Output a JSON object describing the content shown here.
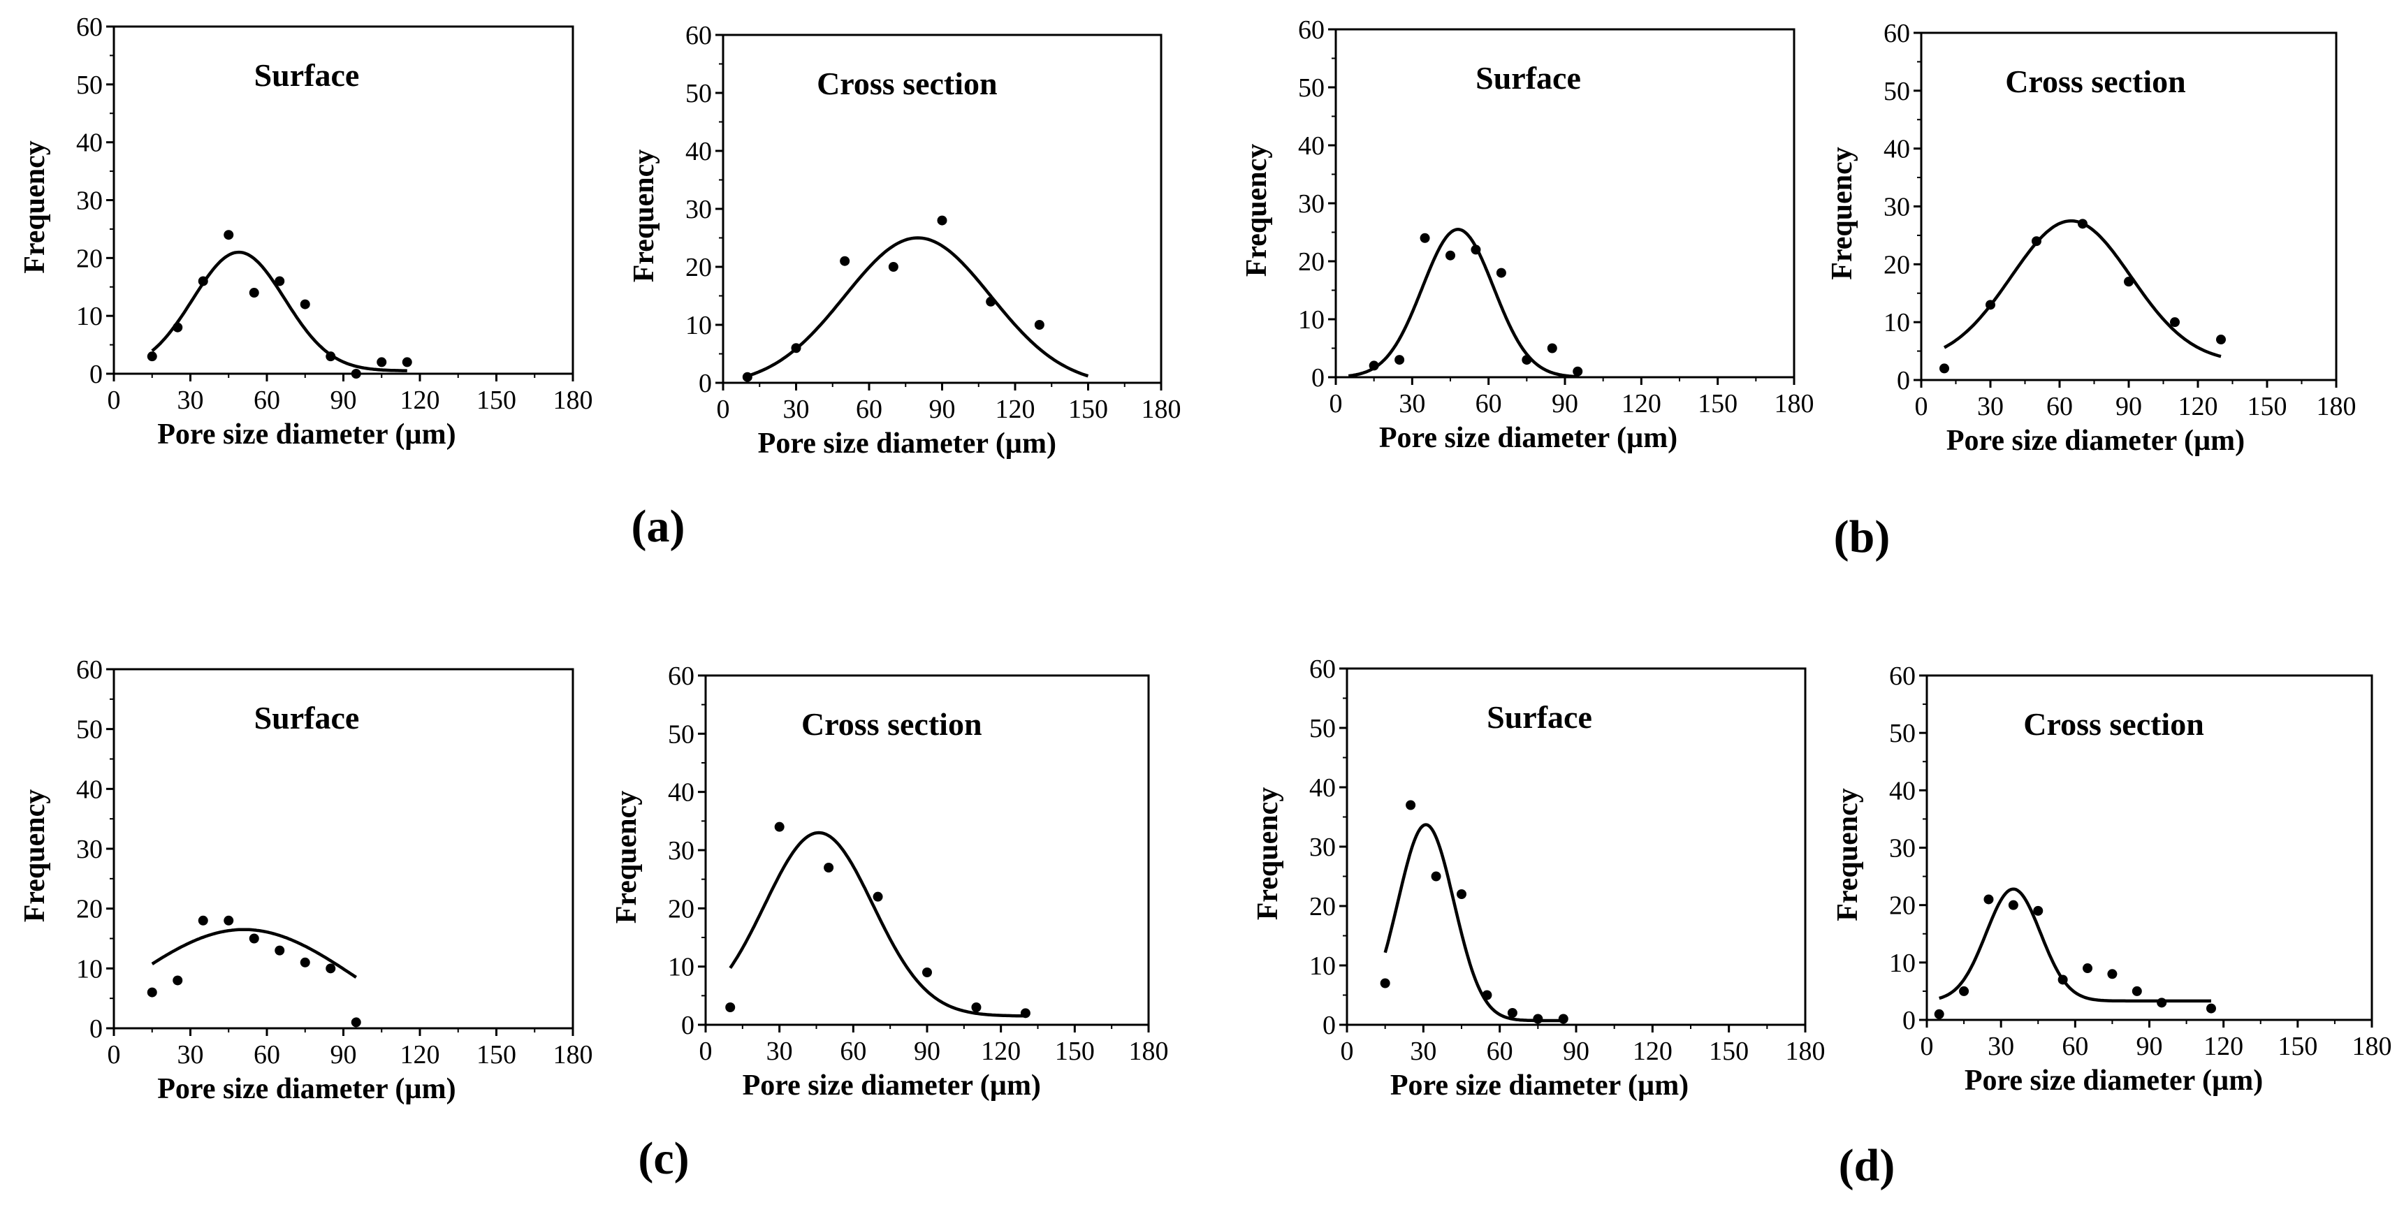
{
  "chart_data": [
    {
      "type": "scatter",
      "panel": "(a)",
      "title": "Surface",
      "xlabel": "Pore size diameter (µm)",
      "ylabel": "Frequency",
      "xlim": [
        0,
        180
      ],
      "ylim": [
        0,
        60
      ],
      "xticks": [
        0,
        30,
        60,
        90,
        120,
        150,
        180
      ],
      "yticks": [
        0,
        10,
        20,
        30,
        40,
        50,
        60
      ],
      "x": [
        15,
        25,
        35,
        45,
        55,
        65,
        75,
        85,
        95,
        105,
        115
      ],
      "y": [
        3,
        8,
        16,
        24,
        14,
        16,
        12,
        3,
        0,
        2,
        2
      ],
      "fit": {
        "type": "gaussian",
        "amplitude": 20.5,
        "center": 49,
        "sigma": 18,
        "baseline": 0.5,
        "x_range": [
          15,
          115
        ]
      }
    },
    {
      "type": "scatter",
      "panel": "(a)",
      "title": "Cross section",
      "xlabel": "Pore size diameter (µm)",
      "ylabel": "Frequency",
      "xlim": [
        0,
        180
      ],
      "ylim": [
        0,
        60
      ],
      "xticks": [
        0,
        30,
        60,
        90,
        120,
        150,
        180
      ],
      "yticks": [
        0,
        10,
        20,
        30,
        40,
        50,
        60
      ],
      "x": [
        10,
        30,
        50,
        70,
        90,
        110,
        130
      ],
      "y": [
        1,
        6,
        21,
        20,
        28,
        14,
        10
      ],
      "fit": {
        "type": "gaussian",
        "amplitude": 25.5,
        "center": 80,
        "sigma": 30,
        "baseline": -0.5,
        "x_range": [
          10,
          150
        ]
      }
    },
    {
      "type": "scatter",
      "panel": "(b)",
      "title": "Surface",
      "xlabel": "Pore size diameter (µm)",
      "ylabel": "Frequency",
      "xlim": [
        0,
        180
      ],
      "ylim": [
        0,
        60
      ],
      "xticks": [
        0,
        30,
        60,
        90,
        120,
        150,
        180
      ],
      "yticks": [
        0,
        10,
        20,
        30,
        40,
        50,
        60
      ],
      "x": [
        15,
        25,
        35,
        45,
        55,
        65,
        75,
        85,
        95
      ],
      "y": [
        2,
        3,
        24,
        21,
        22,
        18,
        3,
        5,
        1
      ],
      "fit": {
        "type": "gaussian",
        "amplitude": 25.5,
        "center": 48,
        "sigma": 14,
        "baseline": 0,
        "x_range": [
          5,
          95
        ]
      }
    },
    {
      "type": "scatter",
      "panel": "(b)",
      "title": "Cross section",
      "xlabel": "Pore size diameter (µm)",
      "ylabel": "Frequency",
      "xlim": [
        0,
        180
      ],
      "ylim": [
        0,
        60
      ],
      "xticks": [
        0,
        30,
        60,
        90,
        120,
        150,
        180
      ],
      "yticks": [
        0,
        10,
        20,
        30,
        40,
        50,
        60
      ],
      "x": [
        10,
        30,
        50,
        70,
        90,
        110,
        130
      ],
      "y": [
        2,
        13,
        24,
        27,
        17,
        10,
        7
      ],
      "fit": {
        "type": "gaussian",
        "amplitude": 24.5,
        "center": 65,
        "sigma": 26,
        "baseline": 3,
        "x_range": [
          10,
          130
        ]
      }
    },
    {
      "type": "scatter",
      "panel": "(c)",
      "title": "Surface",
      "xlabel": "Pore size diameter (µm)",
      "ylabel": "Frequency",
      "xlim": [
        0,
        180
      ],
      "ylim": [
        0,
        60
      ],
      "xticks": [
        0,
        30,
        60,
        90,
        120,
        150,
        180
      ],
      "yticks": [
        0,
        10,
        20,
        30,
        40,
        50,
        60
      ],
      "x": [
        15,
        25,
        35,
        45,
        55,
        65,
        75,
        85,
        95
      ],
      "y": [
        6,
        8,
        18,
        18,
        15,
        13,
        11,
        10,
        1
      ],
      "fit": {
        "type": "gaussian",
        "amplitude": 21,
        "center": 51,
        "sigma": 45,
        "baseline": -4.5,
        "x_range": [
          15,
          95
        ]
      }
    },
    {
      "type": "scatter",
      "panel": "(c)",
      "title": "Cross section",
      "xlabel": "Pore size diameter (µm)",
      "ylabel": "Frequency",
      "xlim": [
        0,
        180
      ],
      "ylim": [
        0,
        60
      ],
      "xticks": [
        0,
        30,
        60,
        90,
        120,
        150,
        180
      ],
      "yticks": [
        0,
        10,
        20,
        30,
        40,
        50,
        60
      ],
      "x": [
        10,
        30,
        50,
        70,
        90,
        110,
        130
      ],
      "y": [
        3,
        34,
        27,
        22,
        9,
        3,
        2
      ],
      "fit": {
        "type": "gaussian",
        "amplitude": 31.5,
        "center": 46,
        "sigma": 22,
        "baseline": 1.5,
        "x_range": [
          10,
          130
        ]
      }
    },
    {
      "type": "scatter",
      "panel": "(d)",
      "title": "Surface",
      "xlabel": "Pore size diameter (µm)",
      "ylabel": "Frequency",
      "xlim": [
        0,
        180
      ],
      "ylim": [
        0,
        60
      ],
      "xticks": [
        0,
        30,
        60,
        90,
        120,
        150,
        180
      ],
      "yticks": [
        0,
        10,
        20,
        30,
        40,
        50,
        60
      ],
      "x": [
        15,
        25,
        35,
        45,
        55,
        65,
        75,
        85
      ],
      "y": [
        7,
        37,
        25,
        22,
        5,
        2,
        1,
        1
      ],
      "fit": {
        "type": "gaussian",
        "amplitude": 33,
        "center": 31,
        "sigma": 11,
        "baseline": 0.7,
        "x_range": [
          15,
          85
        ]
      }
    },
    {
      "type": "scatter",
      "panel": "(d)",
      "title": "Cross section",
      "xlabel": "Pore size diameter (µm)",
      "ylabel": "Frequency",
      "xlim": [
        0,
        180
      ],
      "ylim": [
        0,
        60
      ],
      "xticks": [
        0,
        30,
        60,
        90,
        120,
        150,
        180
      ],
      "yticks": [
        0,
        10,
        20,
        30,
        40,
        50,
        60
      ],
      "x": [
        5,
        15,
        25,
        35,
        45,
        55,
        65,
        75,
        85,
        95,
        115
      ],
      "y": [
        1,
        5,
        21,
        20,
        19,
        7,
        9,
        8,
        5,
        3,
        2
      ],
      "fit": {
        "type": "gaussian",
        "amplitude": 19.5,
        "center": 35,
        "sigma": 11,
        "baseline": 3.3,
        "x_range": [
          5,
          115
        ]
      }
    }
  ],
  "panel_labels": [
    "(a)",
    "(b)",
    "(c)",
    "(d)"
  ]
}
